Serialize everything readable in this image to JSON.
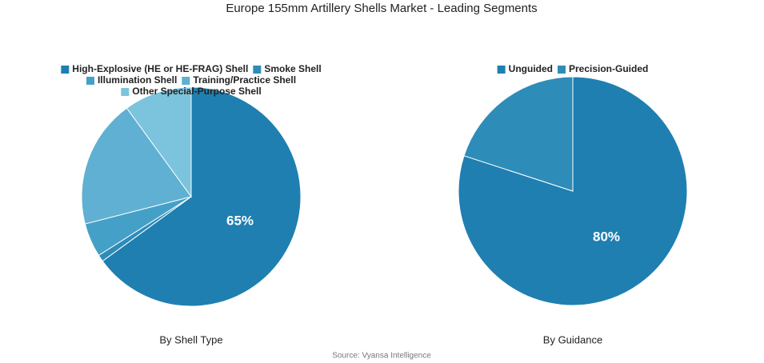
{
  "title": "Europe 155mm Artillery Shells Market - Leading Segments",
  "source": "Source: Vyansa Intelligence",
  "chart_data": [
    {
      "type": "pie",
      "subtitle": "By Shell Type",
      "categories": [
        "High-Explosive (HE or HE-FRAG) Shell",
        "Smoke Shell",
        "Illumination Shell",
        "Training/Practice Shell",
        "Other Special-Purpose Shell"
      ],
      "values": [
        65,
        1,
        5,
        19,
        10
      ],
      "value_labels": [
        "65%",
        null,
        null,
        null,
        null
      ],
      "colors": [
        "#1f7fb0",
        "#2e8cb9",
        "#45a0c8",
        "#5fb0d2",
        "#7cc3dd"
      ]
    },
    {
      "type": "pie",
      "subtitle": "By Guidance",
      "categories": [
        "Unguided",
        "Precision-Guided"
      ],
      "values": [
        80,
        20
      ],
      "value_labels": [
        "80%",
        null
      ],
      "colors": [
        "#1f7fb0",
        "#2e8cb9"
      ]
    }
  ]
}
